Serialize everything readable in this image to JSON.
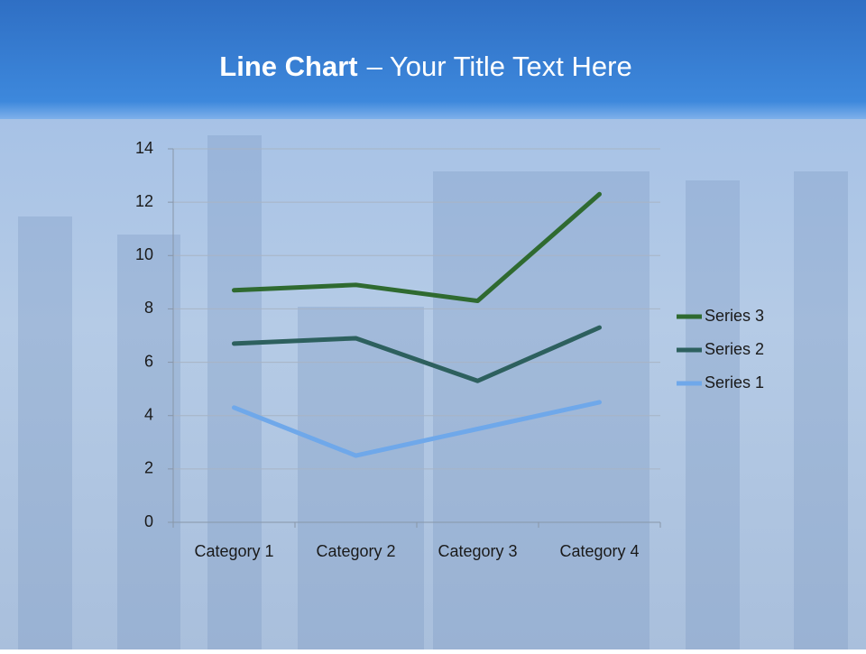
{
  "chart_data": {
    "type": "line",
    "stacked": true,
    "title_lead": "Line Chart",
    "title": "– Your Title Text Here",
    "categories": [
      "Category 1",
      "Category 2",
      "Category 3",
      "Category 4"
    ],
    "series": [
      {
        "name": "Series 1",
        "color": "#6fa8ea",
        "values": [
          4.3,
          2.5,
          3.5,
          4.5
        ]
      },
      {
        "name": "Series 2",
        "color": "#2d605e",
        "values": [
          2.4,
          4.4,
          1.8,
          2.8
        ]
      },
      {
        "name": "Series 3",
        "color": "#2f6a30",
        "values": [
          2,
          2,
          3,
          5
        ]
      }
    ],
    "ylim": [
      0,
      14
    ],
    "yticks": [
      0,
      2,
      4,
      6,
      8,
      10,
      12,
      14
    ],
    "grid": true,
    "legend": "right"
  }
}
